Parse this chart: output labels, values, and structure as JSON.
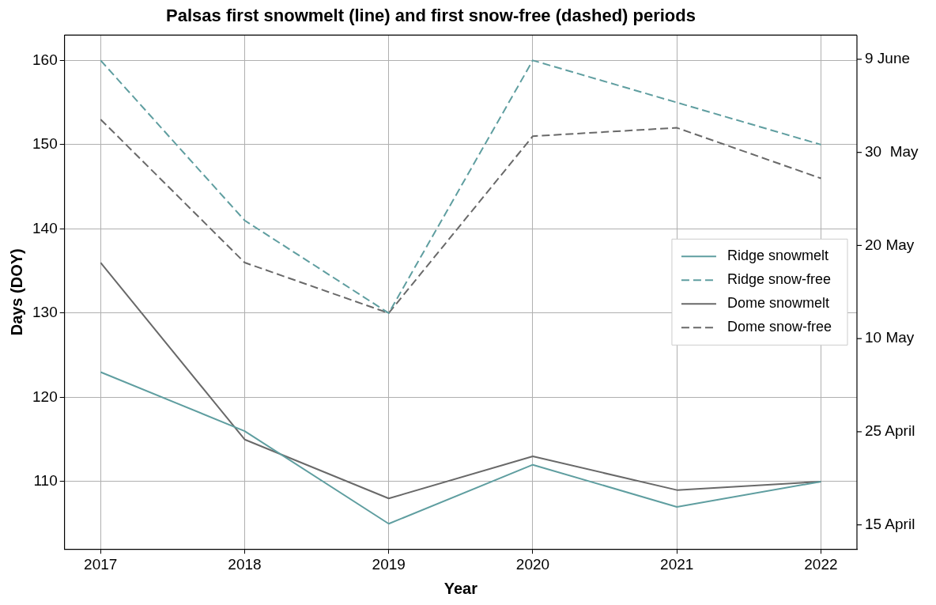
{
  "chart_data": {
    "type": "line",
    "title": "Palsas first snowmelt (line) and first snow-free (dashed) periods",
    "xlabel": "Year",
    "ylabel": "Days (DOY)",
    "x": [
      2017,
      2018,
      2019,
      2020,
      2021,
      2022
    ],
    "xlim": [
      2016.75,
      2022.25
    ],
    "xticks": [
      2017,
      2018,
      2019,
      2020,
      2021,
      2022
    ],
    "ylim": [
      102,
      163
    ],
    "yticks": [
      110,
      120,
      130,
      140,
      150,
      160
    ],
    "annotations": [
      "15 April",
      "25 April",
      "10 May",
      "20 May",
      "30  May",
      "9 June"
    ],
    "grid": true,
    "legend": "right",
    "series": [
      {
        "name": "Ridge snowmelt",
        "color": "#5f9ea0",
        "line_style": "solid",
        "values": [
          123,
          116,
          105,
          112,
          107,
          110
        ]
      },
      {
        "name": "Ridge snow-free",
        "color": "#5f9ea0",
        "line_style": "dashed",
        "values": [
          160,
          141,
          130,
          160,
          155,
          150
        ]
      },
      {
        "name": "Dome snowmelt",
        "color": "#696969",
        "line_style": "solid",
        "values": [
          136,
          115,
          108,
          113,
          109,
          110
        ]
      },
      {
        "name": "Dome snow-free",
        "color": "#696969",
        "line_style": "dashed",
        "values": [
          153,
          136,
          130,
          151,
          152,
          146
        ]
      }
    ]
  }
}
